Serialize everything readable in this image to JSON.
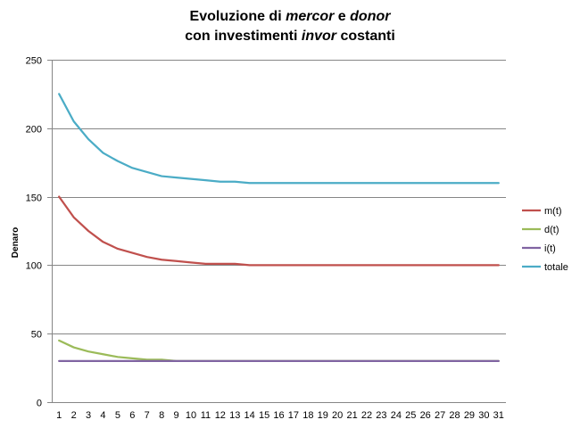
{
  "chart_data": {
    "type": "line",
    "title": "Evoluzione di mercor e donor con investimenti invor costanti",
    "title_parts": {
      "line1": [
        {
          "text": "Evoluzione di ",
          "italic": false
        },
        {
          "text": "mercor",
          "italic": true
        },
        {
          "text": " e ",
          "italic": false
        },
        {
          "text": "donor",
          "italic": true
        }
      ],
      "line2": [
        {
          "text": "con investimenti ",
          "italic": false
        },
        {
          "text": "invor",
          "italic": true
        },
        {
          "text": " costanti",
          "italic": false
        }
      ]
    },
    "xlabel": "",
    "ylabel": "Denaro",
    "ylim": [
      0,
      250
    ],
    "yticks": [
      0,
      50,
      100,
      150,
      200,
      250
    ],
    "grid": true,
    "legend_position": "right",
    "x": [
      1,
      2,
      3,
      4,
      5,
      6,
      7,
      8,
      9,
      10,
      11,
      12,
      13,
      14,
      15,
      16,
      17,
      18,
      19,
      20,
      21,
      22,
      23,
      24,
      25,
      26,
      27,
      28,
      29,
      30,
      31
    ],
    "series": [
      {
        "name": "m(t)",
        "color": "#c0504d",
        "values": [
          150,
          135,
          125,
          117,
          112,
          109,
          106,
          104,
          103,
          102,
          101,
          101,
          101,
          100,
          100,
          100,
          100,
          100,
          100,
          100,
          100,
          100,
          100,
          100,
          100,
          100,
          100,
          100,
          100,
          100,
          100
        ]
      },
      {
        "name": "d(t)",
        "color": "#9bbb59",
        "values": [
          45,
          40,
          37,
          35,
          33,
          32,
          31,
          31,
          30,
          30,
          30,
          30,
          30,
          30,
          30,
          30,
          30,
          30,
          30,
          30,
          30,
          30,
          30,
          30,
          30,
          30,
          30,
          30,
          30,
          30,
          30
        ]
      },
      {
        "name": "i(t)",
        "color": "#8064a2",
        "values": [
          30,
          30,
          30,
          30,
          30,
          30,
          30,
          30,
          30,
          30,
          30,
          30,
          30,
          30,
          30,
          30,
          30,
          30,
          30,
          30,
          30,
          30,
          30,
          30,
          30,
          30,
          30,
          30,
          30,
          30,
          30
        ]
      },
      {
        "name": "totale",
        "color": "#4bacc6",
        "values": [
          225,
          205,
          192,
          182,
          176,
          171,
          168,
          165,
          164,
          163,
          162,
          161,
          161,
          160,
          160,
          160,
          160,
          160,
          160,
          160,
          160,
          160,
          160,
          160,
          160,
          160,
          160,
          160,
          160,
          160,
          160
        ]
      }
    ]
  }
}
